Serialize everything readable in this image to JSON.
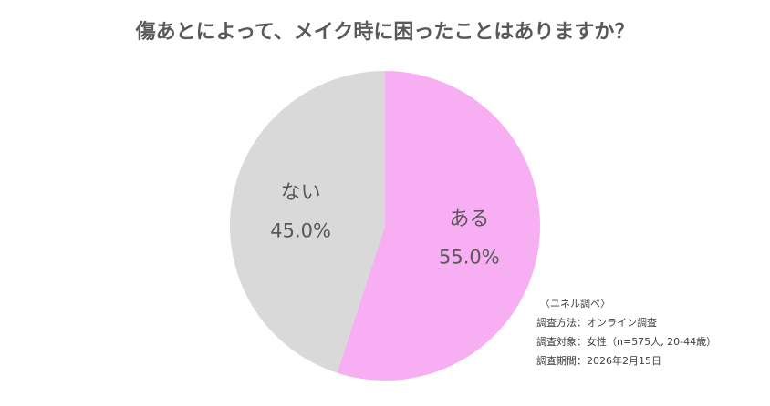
{
  "chart_data": {
    "type": "pie",
    "title": "傷あとによって、メイク時に困ったことはありますか？",
    "categories": [
      "ある",
      "ない"
    ],
    "values": [
      55.0,
      45.0
    ],
    "value_labels": [
      "55.0%",
      "45.0%"
    ],
    "colors": [
      "#f7aef2",
      "#d9d9d9"
    ],
    "notes": [
      "〈ユネル調べ〉",
      "調査方法：オンライン調査",
      "調査対象：女性（n=575人, 20-44歳）",
      "調査期間：2026年2月15日"
    ]
  }
}
